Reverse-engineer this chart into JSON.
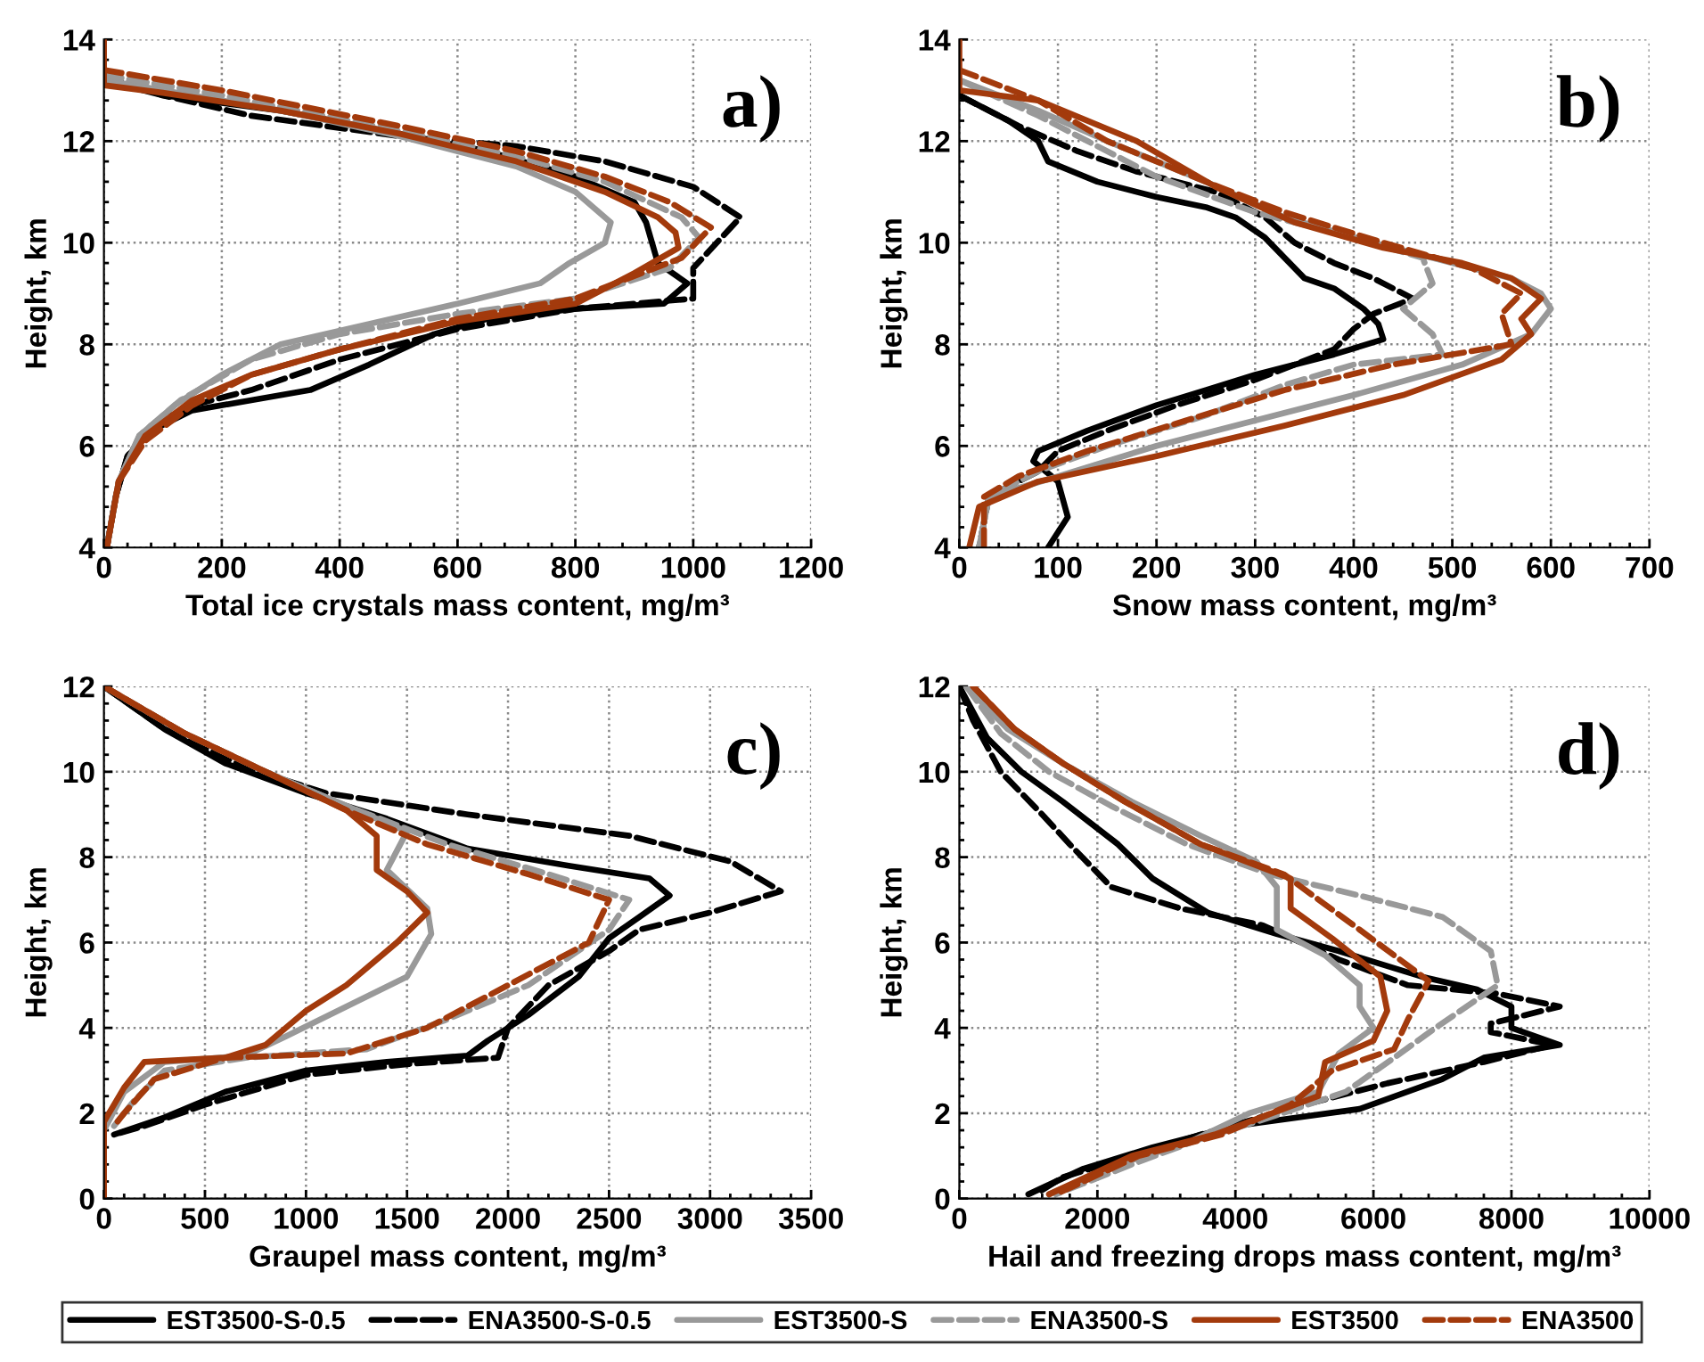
{
  "chart_data": [
    {
      "type": "line",
      "xlabel": "Total ice crystals mass content, mg/m³",
      "ylabel": "Height, km",
      "annotations": [
        "a)"
      ],
      "xlim": [
        0,
        1200
      ],
      "ylim": [
        4,
        14
      ],
      "xticks": [
        0,
        200,
        400,
        600,
        800,
        1000,
        1200
      ],
      "yticks": [
        4,
        6,
        8,
        10,
        12,
        14
      ],
      "grid": true,
      "legend": "bottom",
      "series": [
        {
          "name": "EST3500-S-0.5",
          "color": "#000000",
          "line_style": "solid",
          "x": [
            0,
            100,
            300,
            500,
            650,
            800,
            900,
            920,
            930,
            940,
            990,
            950,
            800,
            650,
            560,
            450,
            350,
            250,
            150,
            80,
            40,
            20,
            5
          ],
          "values": [
            13.2,
            12.9,
            12.6,
            12.15,
            11.8,
            11.3,
            10.8,
            10.4,
            10.0,
            9.6,
            9.2,
            8.8,
            8.7,
            8.5,
            8.2,
            7.6,
            7.1,
            6.9,
            6.7,
            6.3,
            5.8,
            5.0,
            4.0
          ]
        },
        {
          "name": "ENA3500-S-0.5",
          "color": "#000000",
          "line_style": "dashed",
          "x": [
            0,
            100,
            250,
            500,
            700,
            850,
            1000,
            1080,
            1040,
            1000,
            1000,
            800,
            600,
            400,
            250,
            150,
            80,
            40,
            20,
            5
          ],
          "values": [
            13.3,
            12.9,
            12.5,
            12.1,
            11.9,
            11.6,
            11.1,
            10.5,
            10.0,
            9.5,
            8.9,
            8.7,
            8.3,
            7.7,
            7.1,
            6.8,
            6.4,
            5.8,
            5.0,
            4.0
          ]
        },
        {
          "name": "EST3500-S",
          "color": "#999999",
          "line_style": "solid",
          "x": [
            0,
            100,
            300,
            500,
            700,
            800,
            860,
            850,
            790,
            740,
            600,
            450,
            300,
            200,
            120,
            60,
            25,
            5
          ],
          "values": [
            13.2,
            13.0,
            12.6,
            12.1,
            11.5,
            11.0,
            10.4,
            10.0,
            9.6,
            9.2,
            8.8,
            8.4,
            8.0,
            7.4,
            6.8,
            6.2,
            5.3,
            4.0
          ]
        },
        {
          "name": "ENA3500-S",
          "color": "#999999",
          "line_style": "dashed",
          "x": [
            0,
            200,
            500,
            700,
            850,
            980,
            1010,
            960,
            800,
            600,
            400,
            250,
            130,
            60,
            25,
            5
          ],
          "values": [
            13.3,
            12.9,
            12.2,
            11.7,
            11.2,
            10.5,
            10.1,
            9.5,
            8.9,
            8.6,
            8.2,
            7.7,
            6.9,
            6.2,
            5.3,
            4.0
          ]
        },
        {
          "name": "EST3500",
          "color": "#a33a0c",
          "line_style": "solid",
          "x": [
            0,
            0,
            100,
            300,
            500,
            700,
            850,
            940,
            970,
            975,
            900,
            800,
            600,
            400,
            250,
            150,
            70,
            25,
            5
          ],
          "values": [
            14.0,
            13.1,
            12.95,
            12.6,
            12.15,
            11.6,
            11.0,
            10.5,
            10.2,
            9.9,
            9.4,
            8.8,
            8.45,
            7.9,
            7.4,
            6.9,
            6.2,
            5.3,
            4.0
          ]
        },
        {
          "name": "ENA3500",
          "color": "#a33a0c",
          "line_style": "dashed",
          "x": [
            0,
            200,
            500,
            700,
            850,
            960,
            1030,
            980,
            800,
            600,
            400,
            250,
            150,
            70,
            25,
            5
          ],
          "values": [
            13.4,
            13.0,
            12.3,
            11.8,
            11.3,
            10.8,
            10.3,
            9.7,
            8.9,
            8.5,
            7.9,
            7.4,
            6.8,
            6.1,
            5.3,
            4.0
          ]
        }
      ]
    },
    {
      "type": "line",
      "xlabel": "Snow mass content, mg/m³",
      "ylabel": "Height, km",
      "annotations": [
        "b)"
      ],
      "xlim": [
        0,
        700
      ],
      "ylim": [
        4,
        14
      ],
      "xticks": [
        0,
        100,
        200,
        300,
        400,
        500,
        600,
        700
      ],
      "yticks": [
        4,
        6,
        8,
        10,
        12,
        14
      ],
      "grid": true,
      "series": [
        {
          "color": "#000000",
          "line_style": "solid",
          "x": [
            0,
            50,
            80,
            90,
            140,
            200,
            250,
            280,
            310,
            330,
            350,
            380,
            410,
            425,
            430,
            380,
            300,
            250,
            200,
            130,
            80,
            75,
            100,
            110,
            90
          ],
          "values": [
            12.9,
            12.4,
            12.0,
            11.6,
            11.2,
            10.9,
            10.7,
            10.5,
            10.1,
            9.7,
            9.3,
            9.1,
            8.7,
            8.4,
            8.1,
            7.8,
            7.4,
            7.1,
            6.8,
            6.3,
            5.9,
            5.7,
            5.3,
            4.6,
            4.0
          ]
        },
        {
          "color": "#000000",
          "line_style": "dashed",
          "x": [
            0,
            60,
            120,
            180,
            260,
            310,
            340,
            380,
            420,
            460,
            420,
            400,
            380,
            300,
            220,
            150,
            100,
            80,
            30,
            20
          ],
          "values": [
            12.9,
            12.3,
            11.8,
            11.4,
            11.0,
            10.5,
            10.0,
            9.6,
            9.3,
            8.9,
            8.6,
            8.3,
            7.9,
            7.3,
            6.8,
            6.3,
            5.9,
            5.5,
            5.0,
            4.0
          ]
        },
        {
          "color": "#999999",
          "line_style": "solid",
          "x": [
            0,
            80,
            150,
            250,
            330,
            420,
            500,
            560,
            590,
            600,
            580,
            510,
            400,
            300,
            200,
            100,
            30,
            20
          ],
          "values": [
            13.2,
            12.6,
            12.0,
            11.2,
            10.5,
            10.0,
            9.6,
            9.3,
            9.0,
            8.7,
            8.2,
            7.6,
            7.0,
            6.5,
            6.0,
            5.4,
            5.0,
            4.0
          ]
        },
        {
          "color": "#999999",
          "line_style": "dashed",
          "x": [
            0,
            80,
            130,
            200,
            300,
            400,
            470,
            480,
            450,
            480,
            490,
            400,
            330,
            250,
            150,
            80,
            30,
            20
          ],
          "values": [
            13.2,
            12.5,
            12.0,
            11.3,
            10.6,
            10.1,
            9.7,
            9.2,
            8.7,
            8.2,
            7.8,
            7.6,
            7.2,
            6.6,
            6.0,
            5.5,
            5.0,
            4.0
          ]
        },
        {
          "color": "#a33a0c",
          "line_style": "solid",
          "x": [
            0,
            0,
            80,
            180,
            260,
            340,
            430,
            510,
            560,
            590,
            570,
            580,
            550,
            450,
            330,
            200,
            80,
            20,
            10
          ],
          "values": [
            14.0,
            13.0,
            12.8,
            12.0,
            11.1,
            10.4,
            9.9,
            9.6,
            9.3,
            8.9,
            8.5,
            8.2,
            7.7,
            7.0,
            6.4,
            5.8,
            5.3,
            4.8,
            4.0
          ]
        },
        {
          "color": "#a33a0c",
          "line_style": "dashed",
          "x": [
            0,
            80,
            150,
            250,
            330,
            430,
            520,
            570,
            550,
            560,
            440,
            330,
            230,
            130,
            60,
            25,
            25
          ],
          "values": [
            13.4,
            12.8,
            12.0,
            11.2,
            10.6,
            10.0,
            9.5,
            9.0,
            8.6,
            8.0,
            7.6,
            7.1,
            6.5,
            5.9,
            5.4,
            5.0,
            4.0
          ]
        }
      ]
    },
    {
      "type": "line",
      "xlabel": "Graupel mass content, mg/m³",
      "ylabel": "Height, km",
      "annotations": [
        "c)"
      ],
      "xlim": [
        0,
        3500
      ],
      "ylim": [
        0,
        12
      ],
      "xticks": [
        0,
        500,
        1000,
        1500,
        2000,
        2500,
        3000,
        3500
      ],
      "yticks": [
        0,
        2,
        4,
        6,
        8,
        10,
        12
      ],
      "grid": true,
      "series": [
        {
          "color": "#000000",
          "line_style": "solid",
          "x": [
            0,
            300,
            600,
            1000,
            1400,
            1800,
            2300,
            2700,
            2800,
            2650,
            2500,
            2350,
            2100,
            1900,
            1800,
            1400,
            1000,
            600,
            300,
            50
          ],
          "values": [
            12.0,
            11.0,
            10.2,
            9.5,
            8.9,
            8.2,
            7.8,
            7.5,
            7.1,
            6.6,
            6.1,
            5.2,
            4.3,
            3.7,
            3.35,
            3.2,
            3.0,
            2.5,
            1.9,
            1.5
          ]
        },
        {
          "color": "#000000",
          "line_style": "dashed",
          "x": [
            0,
            300,
            700,
            1100,
            1800,
            2600,
            3100,
            3350,
            3000,
            2650,
            2500,
            2200,
            2000,
            1950,
            1500,
            1000,
            500,
            200,
            50
          ],
          "values": [
            12.0,
            11.0,
            10.1,
            9.5,
            9.0,
            8.5,
            7.9,
            7.2,
            6.7,
            6.3,
            5.8,
            5.0,
            4.0,
            3.3,
            3.15,
            2.9,
            2.2,
            1.7,
            1.5
          ]
        },
        {
          "color": "#999999",
          "line_style": "solid",
          "x": [
            0,
            400,
            800,
            1200,
            1500,
            1400,
            1600,
            1620,
            1500,
            1200,
            900,
            700,
            300,
            100,
            0
          ],
          "values": [
            12.0,
            10.9,
            10.0,
            9.2,
            8.6,
            7.7,
            6.8,
            6.2,
            5.2,
            4.5,
            3.8,
            3.35,
            3.2,
            2.5,
            1.6
          ]
        },
        {
          "color": "#999999",
          "line_style": "dashed",
          "x": [
            0,
            400,
            800,
            1200,
            1700,
            2200,
            2600,
            2500,
            2100,
            1700,
            1300,
            700,
            300,
            150,
            50
          ],
          "values": [
            12.0,
            10.9,
            10.0,
            9.2,
            8.3,
            7.6,
            7.0,
            6.3,
            5.0,
            4.2,
            3.5,
            3.3,
            3.0,
            2.3,
            1.7
          ]
        },
        {
          "color": "#a33a0c",
          "line_style": "solid",
          "x": [
            0,
            400,
            800,
            1200,
            1350,
            1350,
            1500,
            1600,
            1450,
            1200,
            1000,
            800,
            600,
            200,
            100,
            0,
            0
          ],
          "values": [
            12.0,
            10.9,
            10.0,
            9.1,
            8.5,
            7.7,
            7.2,
            6.7,
            6.0,
            5.0,
            4.4,
            3.6,
            3.3,
            3.2,
            2.6,
            1.8,
            0.0
          ]
        },
        {
          "color": "#a33a0c",
          "line_style": "dashed",
          "x": [
            0,
            400,
            800,
            1200,
            1600,
            2100,
            2500,
            2400,
            2000,
            1600,
            1200,
            600,
            250,
            100,
            50
          ],
          "values": [
            12.0,
            10.9,
            10.0,
            9.1,
            8.3,
            7.6,
            7.0,
            6.0,
            5.0,
            4.0,
            3.4,
            3.3,
            2.8,
            2.0,
            1.7
          ]
        }
      ]
    },
    {
      "type": "line",
      "xlabel": "Hail and freezing drops mass content, mg/m³",
      "ylabel": "Height, km",
      "annotations": [
        "d)"
      ],
      "xlim": [
        0,
        10000
      ],
      "ylim": [
        0,
        12
      ],
      "xticks": [
        0,
        2000,
        4000,
        6000,
        8000,
        10000
      ],
      "yticks": [
        0,
        2,
        4,
        6,
        8,
        10,
        12
      ],
      "grid": true,
      "series": [
        {
          "color": "#000000",
          "line_style": "solid",
          "x": [
            0,
            400,
            900,
            1500,
            2300,
            2800,
            3600,
            4600,
            5500,
            6700,
            7500,
            8000,
            8000,
            8700,
            7600,
            7000,
            5800,
            4000,
            2800,
            1800,
            1000
          ],
          "values": [
            12.0,
            10.8,
            10.0,
            9.3,
            8.3,
            7.5,
            6.7,
            6.2,
            5.8,
            5.2,
            4.9,
            4.5,
            4.0,
            3.6,
            3.3,
            2.8,
            2.1,
            1.7,
            1.2,
            0.7,
            0.1
          ]
        },
        {
          "color": "#000000",
          "line_style": "dashed",
          "x": [
            0,
            200,
            600,
            1200,
            1600,
            2200,
            3200,
            4400,
            5500,
            6500,
            7800,
            8700,
            7700,
            7700,
            8600,
            7600,
            6200,
            5000,
            3500,
            2500,
            1500,
            1100
          ],
          "values": [
            12.0,
            11.2,
            10.0,
            9.0,
            8.3,
            7.3,
            6.8,
            6.4,
            5.6,
            5.0,
            4.8,
            4.5,
            4.1,
            3.9,
            3.6,
            3.2,
            2.7,
            2.2,
            1.5,
            1.0,
            0.5,
            0.1
          ]
        },
        {
          "color": "#999999",
          "line_style": "solid",
          "x": [
            100,
            700,
            1500,
            2500,
            3500,
            4300,
            4600,
            4600,
            5300,
            5800,
            5800,
            6000,
            5500,
            5200,
            4200,
            3300,
            2300,
            1300
          ],
          "values": [
            12.0,
            11.0,
            10.2,
            9.3,
            8.5,
            7.9,
            7.3,
            6.3,
            5.7,
            5.0,
            4.5,
            4.0,
            3.4,
            2.5,
            2.0,
            1.3,
            0.8,
            0.1
          ]
        },
        {
          "color": "#999999",
          "line_style": "dashed",
          "x": [
            100,
            600,
            1300,
            2200,
            3300,
            4500,
            5800,
            7000,
            7700,
            7800,
            6900,
            6300,
            5600,
            4500,
            3500,
            2500,
            1400
          ],
          "values": [
            12.0,
            10.9,
            10.0,
            9.2,
            8.3,
            7.6,
            7.1,
            6.6,
            5.8,
            5.0,
            4.0,
            3.3,
            2.5,
            1.9,
            1.4,
            0.8,
            0.1
          ]
        },
        {
          "color": "#a33a0c",
          "line_style": "solid",
          "x": [
            200,
            800,
            1500,
            2400,
            3500,
            4800,
            4800,
            5400,
            6100,
            6200,
            6000,
            5300,
            5200,
            3700,
            2500,
            1300
          ],
          "values": [
            12.0,
            11.0,
            10.2,
            9.3,
            8.3,
            7.5,
            6.8,
            6.1,
            5.2,
            4.4,
            3.7,
            3.2,
            2.4,
            1.5,
            1.0,
            0.1
          ]
        },
        {
          "color": "#a33a0c",
          "line_style": "dashed",
          "x": [
            200,
            800,
            1500,
            2400,
            3500,
            4700,
            5800,
            6800,
            6500,
            6300,
            5400,
            4800,
            3800,
            2600,
            1400
          ],
          "values": [
            12.0,
            11.0,
            10.2,
            9.3,
            8.3,
            7.6,
            6.3,
            5.1,
            4.2,
            3.5,
            3.0,
            2.2,
            1.5,
            1.0,
            0.1
          ]
        }
      ]
    }
  ]
}
